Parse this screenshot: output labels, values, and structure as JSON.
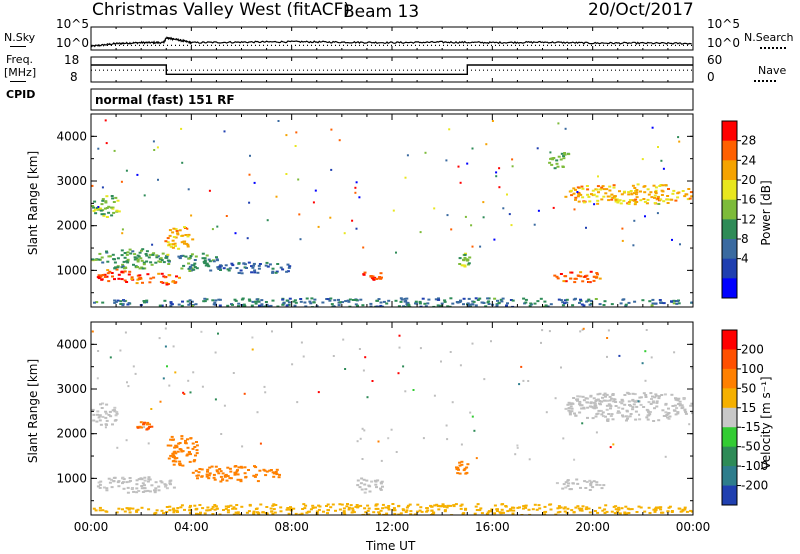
{
  "header": {
    "title": "Christmas Valley West (fitACF)",
    "beam": "Beam 13",
    "date": "20/Oct/2017"
  },
  "side_labels": {
    "nsky": "N.Sky",
    "freq": "Freq.",
    "mhz": "[MHz]",
    "cpid": "CPID",
    "nsearch": "N.Search",
    "nave": "Nave"
  },
  "mode_text": "normal (fast) 151 RF",
  "colors": {
    "frame": "#000000",
    "gray_scatter": "#bebebe"
  },
  "chart_data": [
    {
      "type": "line",
      "name": "noise",
      "left_axis_ticks": [
        "10^5",
        "10^0"
      ],
      "right_axis_ticks": [
        "10^5",
        "10^0"
      ],
      "series": [
        {
          "name": "N.Sky",
          "style": "solid",
          "x": [
            0,
            1,
            2,
            2.9,
            3,
            3.3,
            4,
            6,
            8,
            10,
            12,
            14,
            16,
            18,
            20,
            22,
            24
          ],
          "y": [
            0.8,
            1.4,
            1.6,
            1.6,
            2.7,
            2.4,
            1.6,
            1.7,
            1.8,
            1.7,
            1.6,
            1.7,
            1.6,
            1.7,
            1.5,
            1.5,
            1.4
          ]
        },
        {
          "name": "N.Search",
          "style": "dotted",
          "x": [
            0,
            24
          ],
          "y": [
            1.0,
            1.0
          ]
        }
      ]
    },
    {
      "type": "line",
      "name": "frequency",
      "left_axis_ticks": [
        "18",
        "8"
      ],
      "right_axis_ticks": [
        "60",
        "0"
      ],
      "series": [
        {
          "name": "Freq.",
          "style": "solid",
          "x": [
            0,
            3,
            3,
            15,
            15,
            24
          ],
          "y": [
            15.5,
            15.5,
            10.3,
            10.3,
            15.5,
            15.5
          ]
        },
        {
          "name": "Nave",
          "style": "dotted",
          "x": [
            0,
            24
          ],
          "y": [
            12.6,
            12.6
          ]
        }
      ]
    },
    {
      "type": "heatmap",
      "name": "power",
      "xlabel": "",
      "ylabel": "Slant Range [km]",
      "xlim": [
        0,
        24
      ],
      "ylim": [
        180,
        4500
      ],
      "yticks": [
        1000,
        2000,
        3000,
        4000
      ],
      "colorbar_label": "Power [dB]",
      "colorbar_ticks": [
        "28",
        "24",
        "20",
        "16",
        "12",
        "8",
        "4"
      ],
      "colorbar_colors": [
        "#0000ff",
        "#1f3fb0",
        "#3a6aa0",
        "#2e8b57",
        "#7dbb3a",
        "#e8e61e",
        "#f5a300",
        "#ff6000",
        "#ff0000"
      ],
      "regions": [
        {
          "x": [
            0.0,
            1.1
          ],
          "y": [
            2200,
            2700
          ],
          "value": 16
        },
        {
          "x": [
            0.2,
            1.7
          ],
          "y": [
            750,
            1050
          ],
          "value": 28
        },
        {
          "x": [
            0.0,
            3.2
          ],
          "y": [
            1050,
            1500
          ],
          "value": 14
        },
        {
          "x": [
            1.5,
            3.5
          ],
          "y": [
            700,
            950
          ],
          "value": 27
        },
        {
          "x": [
            2.9,
            4.0
          ],
          "y": [
            1500,
            2000
          ],
          "value": 22
        },
        {
          "x": [
            3.3,
            5.2
          ],
          "y": [
            1000,
            1400
          ],
          "value": 12
        },
        {
          "x": [
            5.0,
            8.0
          ],
          "y": [
            950,
            1200
          ],
          "value": 9
        },
        {
          "x": [
            10.6,
            11.7
          ],
          "y": [
            800,
            1000
          ],
          "value": 27
        },
        {
          "x": [
            14.6,
            15.1
          ],
          "y": [
            1100,
            1400
          ],
          "value": 16
        },
        {
          "x": [
            18.2,
            19.1
          ],
          "y": [
            3300,
            3700
          ],
          "value": 14
        },
        {
          "x": [
            18.8,
            24.0
          ],
          "y": [
            2500,
            2950
          ],
          "value": 22
        },
        {
          "x": [
            18.3,
            20.4
          ],
          "y": [
            750,
            1000
          ],
          "value": 27
        },
        {
          "x": [
            0.0,
            24.0
          ],
          "y": [
            200,
            400
          ],
          "value": 10
        }
      ]
    },
    {
      "type": "heatmap",
      "name": "velocity",
      "xlabel": "Time UT",
      "ylabel": "Slant Range [km]",
      "xlim": [
        0,
        24
      ],
      "ylim": [
        180,
        4500
      ],
      "xticks": [
        "00:00",
        "04:00",
        "08:00",
        "12:00",
        "16:00",
        "20:00",
        "00:00"
      ],
      "yticks": [
        1000,
        2000,
        3000,
        4000
      ],
      "colorbar_label": "Velocity [m s⁻¹]",
      "colorbar_ticks": [
        "200",
        "100",
        "50",
        "15",
        "-15",
        "-50",
        "-100",
        "-200"
      ],
      "colorbar_colors": [
        "#2040b0",
        "#2e7d8c",
        "#2e8b57",
        "#33cc33",
        "#c8c8c8",
        "#f5b000",
        "#ff8000",
        "#ff5000",
        "#ff0000"
      ],
      "regions": [
        {
          "x": [
            0.0,
            1.0
          ],
          "y": [
            2200,
            2700
          ],
          "value": 0
        },
        {
          "x": [
            0.2,
            3.3
          ],
          "y": [
            700,
            1050
          ],
          "value": 0
        },
        {
          "x": [
            1.8,
            2.4
          ],
          "y": [
            2100,
            2300
          ],
          "value": -100
        },
        {
          "x": [
            2.9,
            4.2
          ],
          "y": [
            1300,
            2000
          ],
          "value": -80
        },
        {
          "x": [
            4.0,
            7.5
          ],
          "y": [
            950,
            1300
          ],
          "value": -90
        },
        {
          "x": [
            10.5,
            11.6
          ],
          "y": [
            700,
            1050
          ],
          "value": 0
        },
        {
          "x": [
            14.5,
            15.0
          ],
          "y": [
            1100,
            1400
          ],
          "value": -90
        },
        {
          "x": [
            18.5,
            20.4
          ],
          "y": [
            750,
            1000
          ],
          "value": 0
        },
        {
          "x": [
            18.8,
            24.0
          ],
          "y": [
            2300,
            2950
          ],
          "value": 0
        },
        {
          "x": [
            0.0,
            24.0
          ],
          "y": [
            200,
            450
          ],
          "value": -30
        }
      ]
    }
  ]
}
